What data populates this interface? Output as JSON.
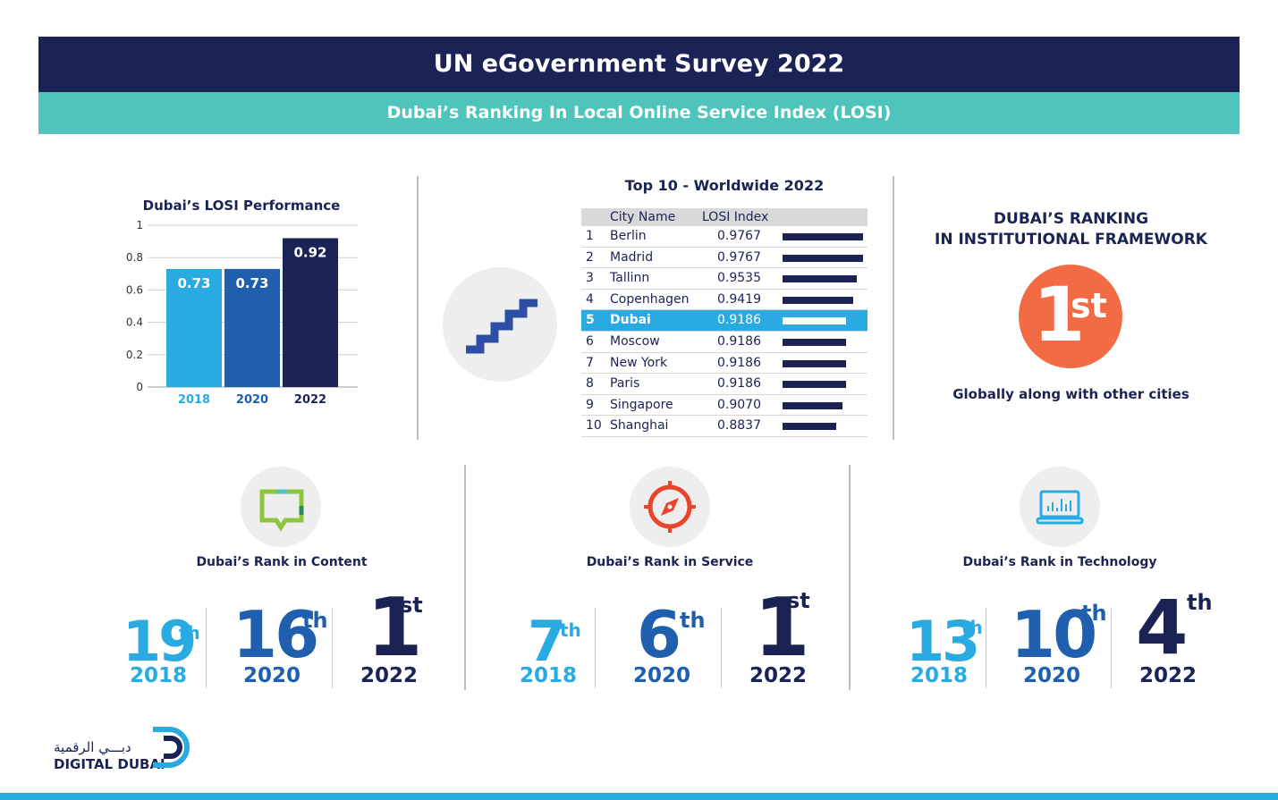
{
  "header": {
    "title": "UN eGovernment Survey 2022",
    "subtitle": "Dubai’s Ranking In Local Online Service Index (LOSI)"
  },
  "chart_data": [
    {
      "type": "bar",
      "title": "Dubai’s LOSI Performance",
      "categories": [
        "2018",
        "2020",
        "2022"
      ],
      "values": [
        0.73,
        0.73,
        0.92
      ],
      "value_labels": [
        "0.73",
        "0.73",
        "0.92"
      ],
      "ylim": [
        0,
        1
      ],
      "yticks": [
        "0",
        "0.2",
        "0.4",
        "0.6",
        "0.8",
        "1"
      ],
      "ytick_values": [
        0,
        0.2,
        0.4,
        0.6,
        0.8,
        1
      ],
      "grid": true,
      "colors": [
        "#29abe2",
        "#1f5fae",
        "#1b2355"
      ],
      "category_label_colors": [
        "#29abe2",
        "#1f5fae",
        "#1b2355"
      ]
    },
    {
      "type": "table",
      "title": "Top 10 - Worldwide 2022",
      "columns": [
        "City Name",
        "LOSI Index"
      ],
      "rows": [
        {
          "rank": "1",
          "city": "Berlin",
          "value": "0.9767",
          "v": 0.9767
        },
        {
          "rank": "2",
          "city": "Madrid",
          "value": "0.9767",
          "v": 0.9767
        },
        {
          "rank": "3",
          "city": "Tallinn",
          "value": "0.9535",
          "v": 0.9535
        },
        {
          "rank": "4",
          "city": "Copenhagen",
          "value": "0.9419",
          "v": 0.9419
        },
        {
          "rank": "5",
          "city": "Dubai",
          "value": "0.9186",
          "v": 0.9186,
          "highlight": true
        },
        {
          "rank": "6",
          "city": "Moscow",
          "value": "0.9186",
          "v": 0.9186
        },
        {
          "rank": "7",
          "city": "New York",
          "value": "0.9186",
          "v": 0.9186
        },
        {
          "rank": "8",
          "city": "Paris",
          "value": "0.9186",
          "v": 0.9186
        },
        {
          "rank": "9",
          "city": "Singapore",
          "value": "0.9070",
          "v": 0.907
        },
        {
          "rank": "10",
          "city": "Shanghai",
          "value": "0.8837",
          "v": 0.8837
        }
      ]
    }
  ],
  "institutional": {
    "title_line1": "DUBAI’S RANKING",
    "title_line2": "IN INSTITUTIONAL FRAMEWORK",
    "rank_num": "1",
    "rank_suffix": "st",
    "footnote": "Globally along with other cities",
    "color": "#f26b44"
  },
  "panels": [
    {
      "title": "Dubai’s Rank in Content",
      "icon": "chat-bubble-icon",
      "ranks": [
        {
          "num": "19",
          "suffix": "th",
          "year": "2018"
        },
        {
          "num": "16",
          "suffix": "th",
          "year": "2020"
        },
        {
          "num": "1",
          "suffix": "st",
          "year": "2022"
        }
      ]
    },
    {
      "title": "Dubai’s Rank in Service",
      "icon": "compass-icon",
      "ranks": [
        {
          "num": "7",
          "suffix": "th",
          "year": "2018"
        },
        {
          "num": "6",
          "suffix": "th",
          "year": "2020"
        },
        {
          "num": "1",
          "suffix": "st",
          "year": "2022"
        }
      ]
    },
    {
      "title": "Dubai’s Rank in Technology",
      "icon": "laptop-icon",
      "ranks": [
        {
          "num": "13",
          "suffix": "th",
          "year": "2018"
        },
        {
          "num": "10",
          "suffix": "th",
          "year": "2020"
        },
        {
          "num": "4",
          "suffix": "th",
          "year": "2022"
        }
      ]
    }
  ],
  "colors": {
    "navy": "#1b2355",
    "teal": "#4ec4bd",
    "light_blue": "#29abe2",
    "mid_blue": "#1f5fae",
    "orange": "#f26b44"
  },
  "logo": {
    "arabic": "دبـــي الرقمية",
    "english": "DIGITAL DUBAI"
  }
}
